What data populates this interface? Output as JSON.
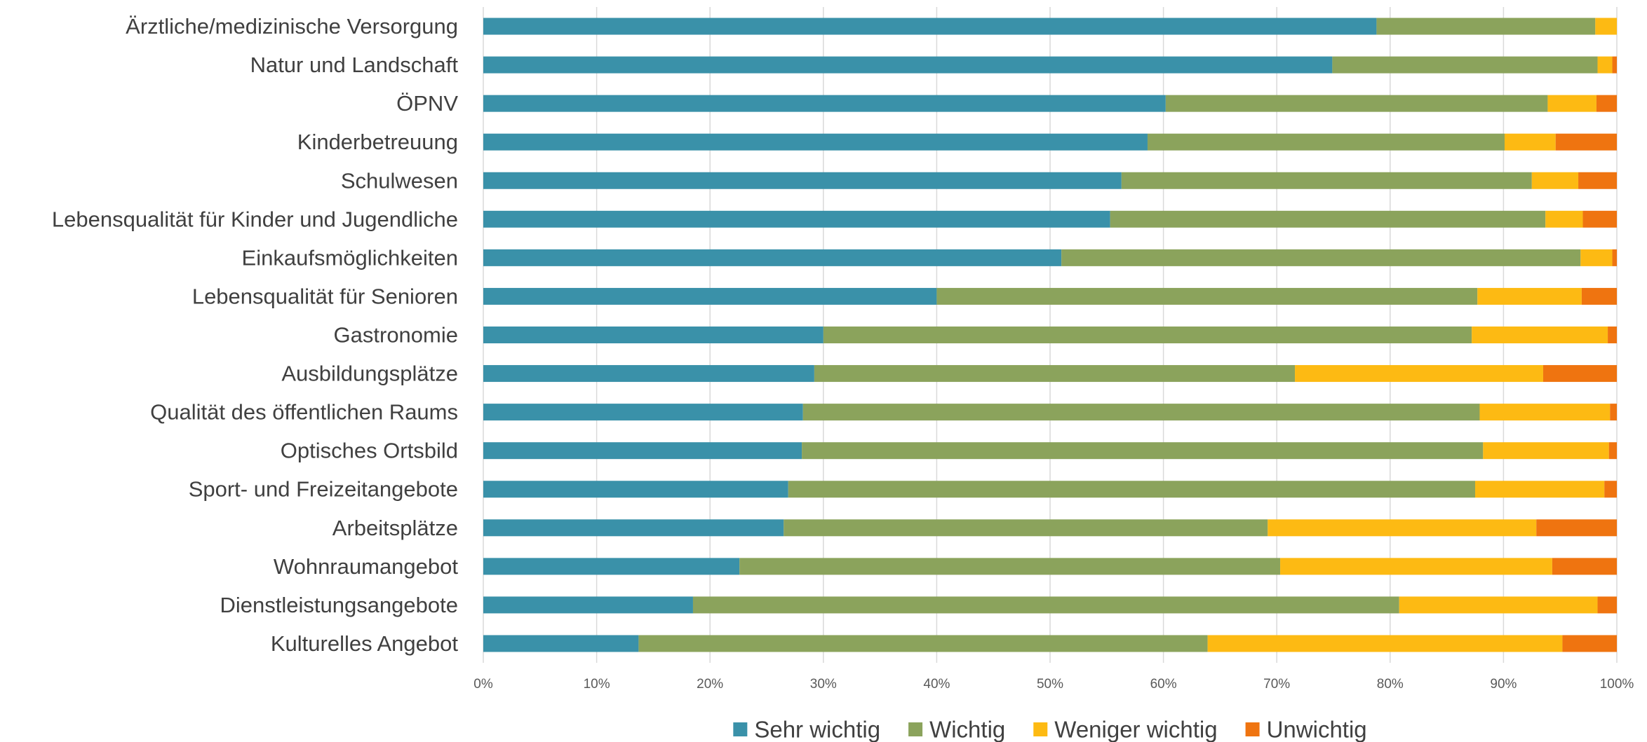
{
  "chart_data": {
    "type": "bar",
    "orientation": "horizontal",
    "stacked": "percent",
    "categories": [
      "Ärztliche/medizinische Versorgung",
      "Natur und Landschaft",
      "ÖPNV",
      "Kinderbetreuung",
      "Schulwesen",
      "Lebensqualität für Kinder und Jugendliche",
      "Einkaufsmöglichkeiten",
      "Lebensqualität für Senioren",
      "Gastronomie",
      "Ausbildungsplätze",
      "Qualität des öffentlichen Raums",
      "Optisches Ortsbild",
      "Sport- und Freizeitangebote",
      "Arbeitsplätze",
      "Wohnraumangebot",
      "Dienstleistungsangebote",
      "Kulturelles Angebot"
    ],
    "series": [
      {
        "name": "Sehr wichtig",
        "color": "#3a91a9",
        "values": [
          78.8,
          74.9,
          60.2,
          58.6,
          56.3,
          55.3,
          51.0,
          40.0,
          30.0,
          29.2,
          28.2,
          28.1,
          26.9,
          26.5,
          22.6,
          18.5,
          13.7
        ]
      },
      {
        "name": "Wichtig",
        "color": "#8ba35c",
        "values": [
          19.3,
          23.4,
          33.7,
          31.5,
          36.2,
          38.4,
          45.8,
          47.7,
          57.2,
          42.4,
          59.7,
          60.1,
          60.6,
          42.7,
          47.7,
          62.3,
          50.2
        ]
      },
      {
        "name": "Weniger wichtig",
        "color": "#fdba13",
        "values": [
          1.9,
          1.3,
          4.3,
          4.5,
          4.1,
          3.3,
          2.8,
          9.2,
          12.0,
          21.9,
          11.5,
          11.1,
          11.4,
          23.7,
          24.0,
          17.5,
          31.3
        ]
      },
      {
        "name": "Unwichtig",
        "color": "#ef7410",
        "values": [
          0.0,
          0.4,
          1.8,
          5.4,
          3.4,
          3.0,
          0.4,
          3.1,
          0.8,
          6.5,
          0.6,
          0.7,
          1.1,
          7.1,
          5.7,
          1.7,
          4.8
        ]
      }
    ],
    "xlim": [
      0,
      100
    ],
    "xticks": [
      "0%",
      "10%",
      "20%",
      "30%",
      "40%",
      "50%",
      "60%",
      "70%",
      "80%",
      "90%",
      "100%"
    ],
    "title": "",
    "xlabel": "",
    "ylabel": "",
    "grid": "vertical",
    "legend_position": "bottom"
  }
}
